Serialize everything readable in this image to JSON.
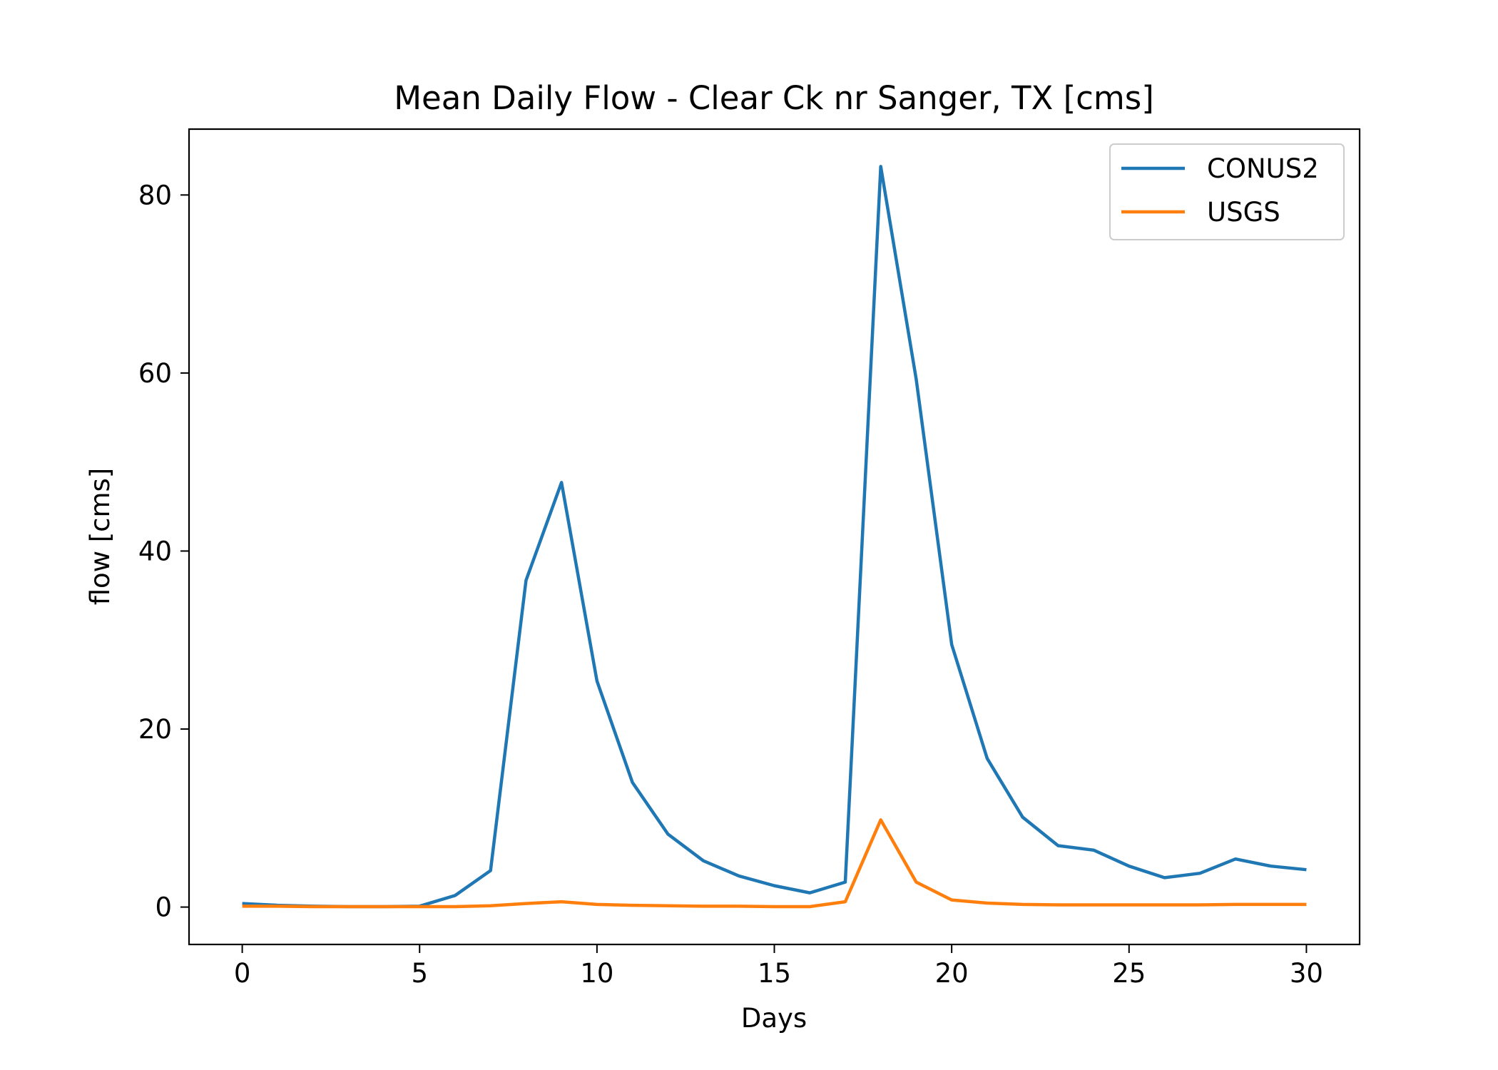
{
  "chart_data": {
    "type": "line",
    "title": "Mean Daily Flow - Clear Ck nr Sanger, TX [cms]",
    "xlabel": "Days",
    "ylabel": "flow [cms]",
    "xlim": [
      -1.5,
      31.5
    ],
    "ylim": [
      -4.2,
      87.4
    ],
    "x_ticks": [
      0,
      5,
      10,
      15,
      20,
      25,
      30
    ],
    "y_ticks": [
      0,
      20,
      40,
      60,
      80
    ],
    "x_tick_labels": [
      "0",
      "5",
      "10",
      "15",
      "20",
      "25",
      "30"
    ],
    "y_tick_labels": [
      "0",
      "20",
      "40",
      "60",
      "80"
    ],
    "grid": false,
    "legend_position": "top-right",
    "x": [
      0,
      1,
      2,
      3,
      4,
      5,
      6,
      7,
      8,
      9,
      10,
      11,
      12,
      13,
      14,
      15,
      16,
      17,
      18,
      19,
      20,
      21,
      22,
      23,
      24,
      25,
      26,
      27,
      28,
      29,
      30
    ],
    "series": [
      {
        "name": "CONUS2",
        "color": "#1f77b4",
        "values": [
          0.4,
          0.2,
          0.1,
          0.05,
          0.05,
          0.1,
          1.3,
          4.1,
          36.7,
          47.7,
          25.4,
          14.0,
          8.2,
          5.2,
          3.5,
          2.4,
          1.6,
          2.8,
          83.2,
          59.3,
          29.5,
          16.7,
          10.1,
          6.9,
          6.4,
          4.6,
          3.3,
          3.8,
          5.4,
          4.6,
          4.2
        ]
      },
      {
        "name": "USGS",
        "color": "#ff7f0e",
        "values": [
          0.1,
          0.1,
          0.05,
          0.05,
          0.05,
          0.05,
          0.05,
          0.15,
          0.4,
          0.6,
          0.3,
          0.2,
          0.15,
          0.1,
          0.1,
          0.05,
          0.05,
          0.6,
          9.8,
          2.8,
          0.8,
          0.45,
          0.3,
          0.25,
          0.25,
          0.25,
          0.25,
          0.25,
          0.3,
          0.3,
          0.3
        ]
      }
    ]
  }
}
